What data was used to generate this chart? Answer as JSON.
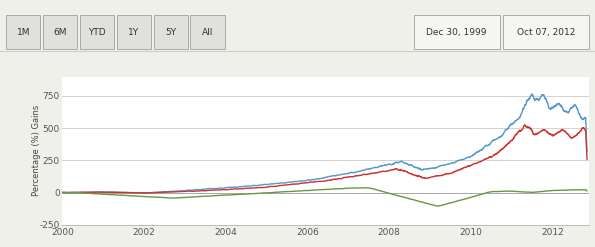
{
  "ylabel": "Percentage (%) Gains",
  "ylim": [
    -250,
    900
  ],
  "xlim": [
    2000.0,
    2012.9
  ],
  "yticks": [
    -250,
    0,
    250,
    500,
    750
  ],
  "xticks": [
    2000,
    2002,
    2004,
    2006,
    2008,
    2010,
    2012
  ],
  "bg_color": "#f0f0eb",
  "plot_bg": "#ffffff",
  "grid_color": "#cccccc",
  "date_start": "Dec 30, 1999",
  "date_end": "Oct 07, 2012",
  "buttons": [
    "1M",
    "6M",
    "YTD",
    "1Y",
    "5Y",
    "All"
  ],
  "line_gold_color": "#5599cc",
  "line_silver_color": "#cc3333",
  "line_dow_color": "#669944",
  "line_width": 1.0
}
